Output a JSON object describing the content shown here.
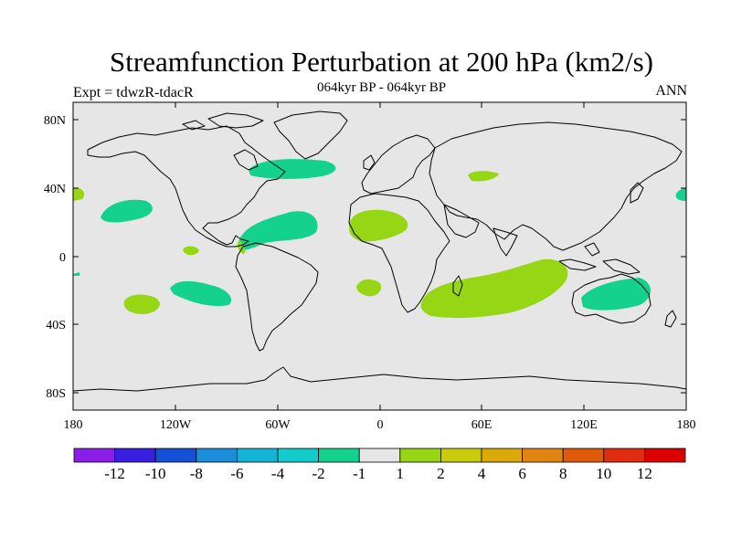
{
  "header": {
    "title": "Streamfunction Perturbation at 200 hPa (km2/s)",
    "subtitle": "064kyr BP - 064kyr BP",
    "left_label": "Expt = tdwzR-tdacR",
    "right_label": "ANN"
  },
  "map_axes": {
    "lat_ticks": [
      "80N",
      "40N",
      "0",
      "40S",
      "80S"
    ],
    "lon_ticks": [
      "180",
      "120W",
      "60W",
      "0",
      "60E",
      "120E",
      "180"
    ]
  },
  "colorbar": {
    "colors": [
      "#8b1ee6",
      "#3a1ee0",
      "#1550d8",
      "#1a8ed8",
      "#14b4d6",
      "#12cccc",
      "#14d28e",
      "#e6e6e6",
      "#96d614",
      "#c8cc0a",
      "#dcaa08",
      "#e08412",
      "#e05a0a",
      "#e02c10",
      "#dc0000"
    ],
    "labels": [
      "-12",
      "-10",
      "-8",
      "-6",
      "-4",
      "-2",
      "-1",
      "1",
      "2",
      "4",
      "6",
      "8",
      "10",
      "12"
    ]
  },
  "colors": {
    "map_background": "#e6e6e6",
    "positive_fill": "#96d614",
    "negative_fill": "#14d28e",
    "coastline": "#000000"
  }
}
